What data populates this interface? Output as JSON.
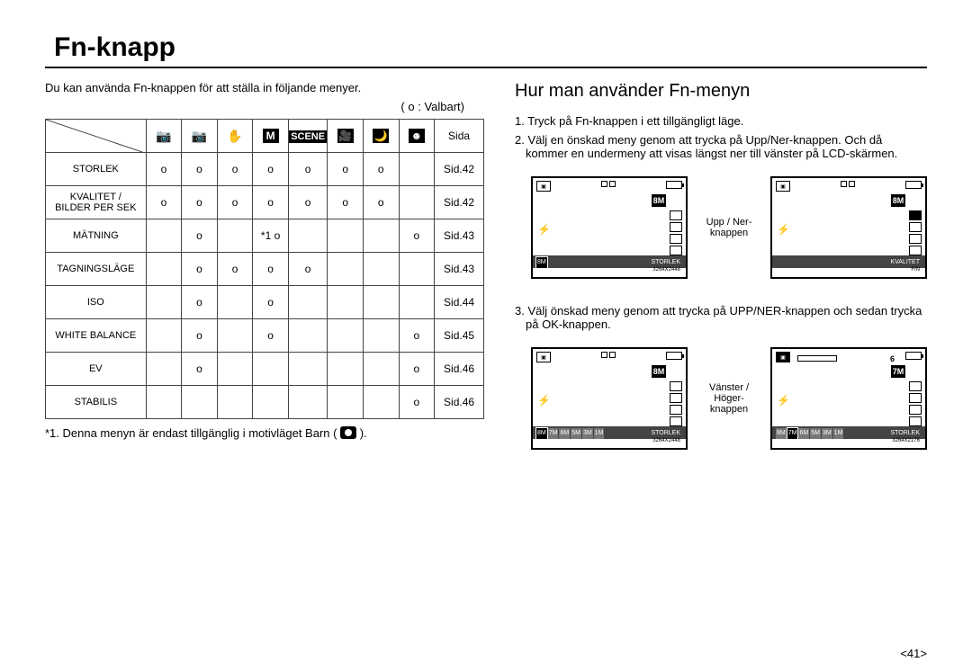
{
  "title": "Fn-knapp",
  "intro": "Du kan använda Fn-knappen för att ställa in följande menyer.",
  "legend_prefix": "( ",
  "legend_symbol": "o",
  "legend_suffix": " : Valbart)",
  "table": {
    "page_header": "Sida",
    "modes": {
      "m0": "📷",
      "m1_sub": "P",
      "m2": "✋",
      "m3": "M",
      "m4": "SCENE",
      "m5": "🎥",
      "m6": "🌙",
      "m7_sub": "👤"
    },
    "rows": [
      {
        "label": "STORLEK",
        "cells": [
          "o",
          "o",
          "o",
          "o",
          "o",
          "o",
          "o",
          ""
        ],
        "page": "Sid.42"
      },
      {
        "label": "KVALITET /\nBILDER PER SEK",
        "cells": [
          "o",
          "o",
          "o",
          "o",
          "o",
          "o",
          "o",
          ""
        ],
        "page": "Sid.42"
      },
      {
        "label": "MÄTNING",
        "cells": [
          "",
          "o",
          "",
          "*1  o",
          "",
          "",
          "",
          "o"
        ],
        "page": "Sid.43"
      },
      {
        "label": "TAGNINGSLÄGE",
        "cells": [
          "",
          "o",
          "o",
          "o",
          "o",
          "",
          "",
          ""
        ],
        "page": "Sid.43"
      },
      {
        "label": "ISO",
        "cells": [
          "",
          "o",
          "",
          "o",
          "",
          "",
          "",
          ""
        ],
        "page": "Sid.44"
      },
      {
        "label": "WHITE BALANCE",
        "cells": [
          "",
          "o",
          "",
          "o",
          "",
          "",
          "",
          "o"
        ],
        "page": "Sid.45"
      },
      {
        "label": "EV",
        "cells": [
          "",
          "o",
          "",
          "",
          "",
          "",
          "",
          "o"
        ],
        "page": "Sid.46"
      },
      {
        "label": "STABILIS",
        "cells": [
          "",
          "",
          "",
          "",
          "",
          "",
          "",
          "o"
        ],
        "page": "Sid.46"
      }
    ]
  },
  "footnote": "*1. Denna menyn är endast tillgänglig i motivläget Barn (     ).",
  "right": {
    "heading": "Hur man använder Fn-menyn",
    "step1": "1. Tryck på Fn-knappen i ett tillgängligt läge.",
    "step2": "2. Välj en önskad meny genom att trycka på Upp/Ner-knappen. Och då kommer en undermeny att visas längst ner till vänster på LCD-skärmen.",
    "caption1": "Upp / Ner-knappen",
    "step3": "3. Välj önskad meny genom att trycka på UPP/NER-knappen och sedan trycka på OK-knappen.",
    "caption2": "Vänster / Höger-knappen",
    "lcd_labels": {
      "storlek": "STORLEK",
      "kvalitet": "KVALITET",
      "res1": "3264X2448",
      "res2": "3264X2176",
      "fin": "FIN",
      "big8": "8M",
      "big7": "7M",
      "six": "6"
    }
  },
  "sizes_all": [
    "8M",
    "7M",
    "6M",
    "5M",
    "3M",
    "1M"
  ],
  "page_number": "<41>"
}
